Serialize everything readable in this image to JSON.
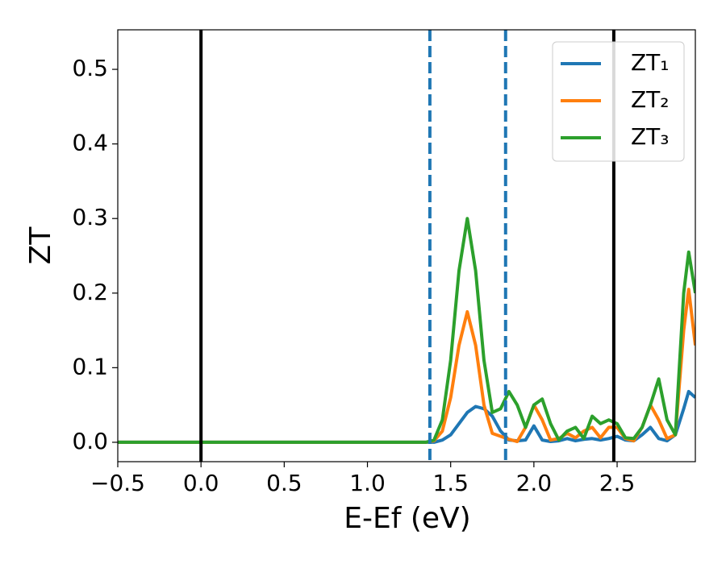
{
  "chart_data": {
    "type": "line",
    "xlabel": "E-Ef (eV)",
    "ylabel": "ZT",
    "x": [
      -0.5,
      1.3,
      1.35,
      1.4,
      1.45,
      1.5,
      1.55,
      1.6,
      1.65,
      1.7,
      1.75,
      1.8,
      1.85,
      1.9,
      1.95,
      2.0,
      2.05,
      2.1,
      2.15,
      2.2,
      2.25,
      2.3,
      2.35,
      2.4,
      2.45,
      2.5,
      2.55,
      2.6,
      2.65,
      2.7,
      2.75,
      2.8,
      2.85,
      2.9,
      2.93,
      2.97
    ],
    "series": [
      {
        "name": "ZT₁",
        "color": "#1f77b4",
        "values": [
          0,
          0,
          0,
          0,
          0.003,
          0.01,
          0.025,
          0.04,
          0.048,
          0.045,
          0.035,
          0.015,
          0.003,
          0.002,
          0.003,
          0.022,
          0.003,
          0.001,
          0.002,
          0.005,
          0.002,
          0.004,
          0.005,
          0.003,
          0.005,
          0.008,
          0.003,
          0.002,
          0.01,
          0.02,
          0.005,
          0.002,
          0.01,
          0.045,
          0.068,
          0.06
        ]
      },
      {
        "name": "ZT₂",
        "color": "#ff7f0e",
        "values": [
          0,
          0,
          0,
          0.002,
          0.015,
          0.06,
          0.13,
          0.175,
          0.13,
          0.05,
          0.012,
          0.008,
          0.004,
          0.001,
          0.02,
          0.05,
          0.03,
          0.003,
          0.005,
          0.012,
          0.006,
          0.015,
          0.02,
          0.006,
          0.02,
          0.02,
          0.005,
          0.002,
          0.02,
          0.05,
          0.03,
          0.005,
          0.01,
          0.15,
          0.205,
          0.13
        ]
      },
      {
        "name": "ZT₃",
        "color": "#2ca02c",
        "values": [
          0,
          0,
          0,
          0.003,
          0.03,
          0.11,
          0.23,
          0.3,
          0.23,
          0.11,
          0.04,
          0.045,
          0.068,
          0.05,
          0.02,
          0.05,
          0.058,
          0.025,
          0.003,
          0.015,
          0.02,
          0.005,
          0.035,
          0.025,
          0.03,
          0.025,
          0.006,
          0.005,
          0.02,
          0.05,
          0.085,
          0.03,
          0.01,
          0.2,
          0.255,
          0.2
        ]
      }
    ],
    "vlines": [
      {
        "x": 0,
        "color": "#000000",
        "dashed": false
      },
      {
        "x": 1.375,
        "color": "#1f77b4",
        "dashed": true
      },
      {
        "x": 1.83,
        "color": "#1f77b4",
        "dashed": true
      },
      {
        "x": 2.48,
        "color": "#000000",
        "dashed": false
      }
    ],
    "xlim": [
      -0.5,
      2.97
    ],
    "ylim": [
      -0.026,
      0.553
    ],
    "xticks": [
      {
        "value": -0.5,
        "label": "−0.5"
      },
      {
        "value": 0,
        "label": "0.0"
      },
      0.5,
      {
        "value": 1,
        "label": "1.0"
      },
      1.5,
      {
        "value": 2,
        "label": "2.0"
      },
      2.5
    ],
    "yticks": [
      {
        "value": 0,
        "label": "0.0"
      },
      0.1,
      0.2,
      0.3,
      0.4,
      0.5
    ],
    "legend": "upper right"
  }
}
